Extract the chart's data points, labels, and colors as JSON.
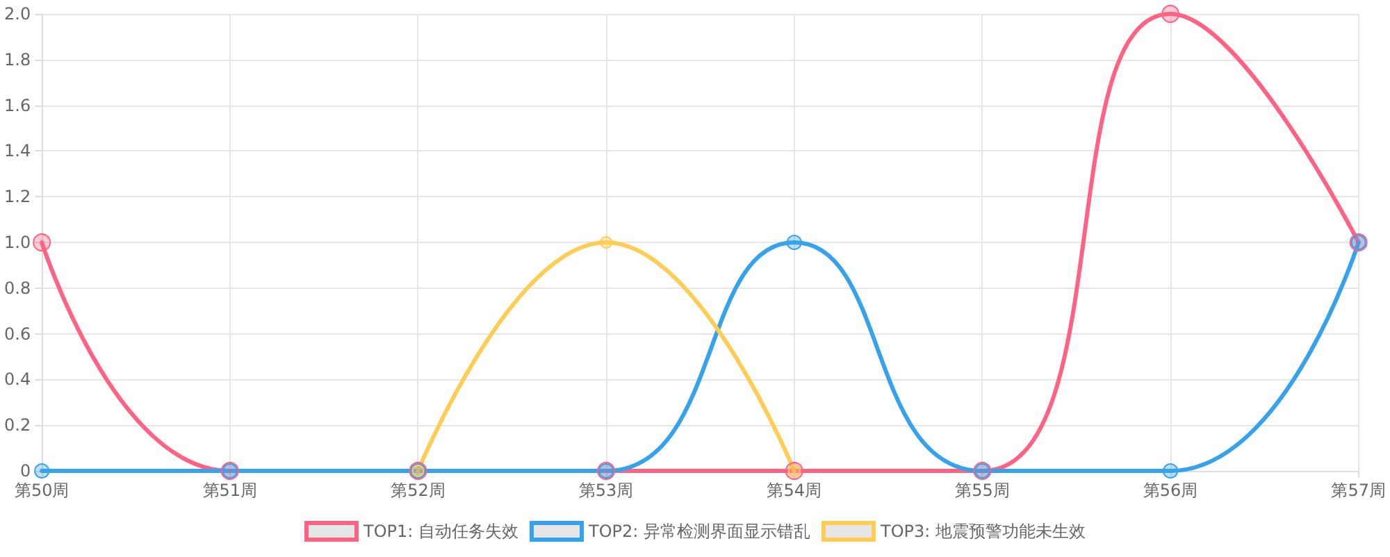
{
  "chart_data": {
    "type": "line",
    "categories": [
      "第50周",
      "第51周",
      "第52周",
      "第53周",
      "第54周",
      "第55周",
      "第56周",
      "第57周"
    ],
    "series": [
      {
        "name": "TOP1: 自动任务失效",
        "color": "#ff6384",
        "values": [
          1,
          0,
          0,
          0,
          0,
          0,
          2,
          1
        ]
      },
      {
        "name": "TOP2: 异常检测界面显示错乱",
        "color": "#36a2eb",
        "values": [
          0,
          0,
          0,
          0,
          1,
          0,
          0,
          1
        ]
      },
      {
        "name": "TOP3: 地震预警功能未生效",
        "color": "#ffcd56",
        "values": [
          null,
          null,
          0,
          1,
          0,
          null,
          null,
          null
        ]
      }
    ],
    "ylim": [
      0,
      2
    ],
    "yticks": [
      0,
      0.2,
      0.4,
      0.6,
      0.8,
      {
        "value": 1,
        "label": "1.0"
      },
      1.2,
      1.4,
      1.6,
      1.8,
      {
        "value": 2,
        "label": "2.0"
      }
    ],
    "grid": true,
    "legend": "bottom",
    "marker": "circle",
    "line_style": "solid"
  }
}
